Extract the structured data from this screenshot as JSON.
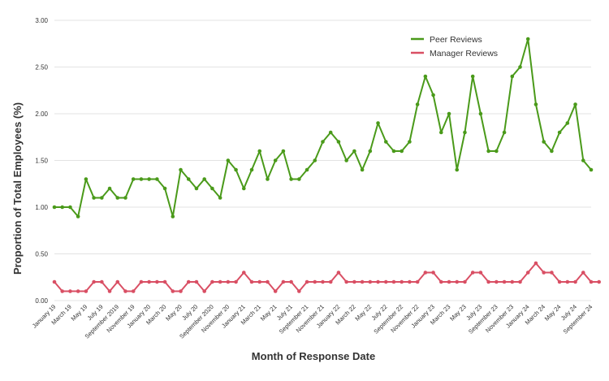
{
  "chart_data": {
    "type": "line",
    "xlabel": "Month of Response Date",
    "ylabel": "Proportion of Total Employees (%)",
    "ylim": [
      0,
      3
    ],
    "y_ticks": [
      "0.00",
      "0.50",
      "1.00",
      "1.50",
      "2.00",
      "2.50",
      "3.00"
    ],
    "grid": "horizontal",
    "legend_position": "top-right",
    "x_tick_labels": [
      "January 19",
      "March 19",
      "May 19",
      "July 19",
      "September 2019",
      "November 19",
      "January 20",
      "March 20",
      "May 20",
      "July 20",
      "September 2020",
      "November 20",
      "January 21",
      "March 21",
      "May 21",
      "July 21",
      "September 21",
      "November 21",
      "January 22",
      "March 22",
      "May 22",
      "July 22",
      "September 22",
      "November 22",
      "January 23",
      "March 23",
      "May 23",
      "July 23",
      "September 23",
      "November 23",
      "January 24",
      "March 24",
      "May 24",
      "July 24",
      "September 24"
    ],
    "series": [
      {
        "name": "Peer Reviews",
        "color": "#4a9a1a",
        "values": [
          1.0,
          1.0,
          1.0,
          0.9,
          1.3,
          1.1,
          1.1,
          1.2,
          1.1,
          1.1,
          1.3,
          1.3,
          1.3,
          1.3,
          1.2,
          0.9,
          1.4,
          1.3,
          1.2,
          1.3,
          1.2,
          1.1,
          1.5,
          1.4,
          1.2,
          1.4,
          1.6,
          1.3,
          1.5,
          1.6,
          1.3,
          1.3,
          1.4,
          1.5,
          1.7,
          1.8,
          1.7,
          1.5,
          1.6,
          1.4,
          1.6,
          1.9,
          1.7,
          1.6,
          1.6,
          1.7,
          2.1,
          2.4,
          2.2,
          1.8,
          2.0,
          1.4,
          1.8,
          2.4,
          2.0,
          1.6,
          1.6,
          1.8,
          2.4,
          2.5,
          2.8,
          2.1,
          1.7,
          1.6,
          1.8,
          1.9,
          2.1,
          1.5,
          1.4
        ]
      },
      {
        "name": "Manager Reviews",
        "color": "#d94f64",
        "values": [
          0.2,
          0.1,
          0.1,
          0.1,
          0.1,
          0.2,
          0.2,
          0.1,
          0.2,
          0.1,
          0.1,
          0.2,
          0.2,
          0.2,
          0.2,
          0.1,
          0.1,
          0.2,
          0.2,
          0.1,
          0.2,
          0.2,
          0.2,
          0.2,
          0.3,
          0.2,
          0.2,
          0.2,
          0.1,
          0.2,
          0.2,
          0.1,
          0.2,
          0.2,
          0.2,
          0.2,
          0.3,
          0.2,
          0.2,
          0.2,
          0.2,
          0.2,
          0.2,
          0.2,
          0.2,
          0.2,
          0.2,
          0.3,
          0.3,
          0.2,
          0.2,
          0.2,
          0.2,
          0.3,
          0.3,
          0.2,
          0.2,
          0.2,
          0.2,
          0.2,
          0.3,
          0.4,
          0.3,
          0.3,
          0.2,
          0.2,
          0.2,
          0.3,
          0.2,
          0.2
        ]
      }
    ]
  }
}
